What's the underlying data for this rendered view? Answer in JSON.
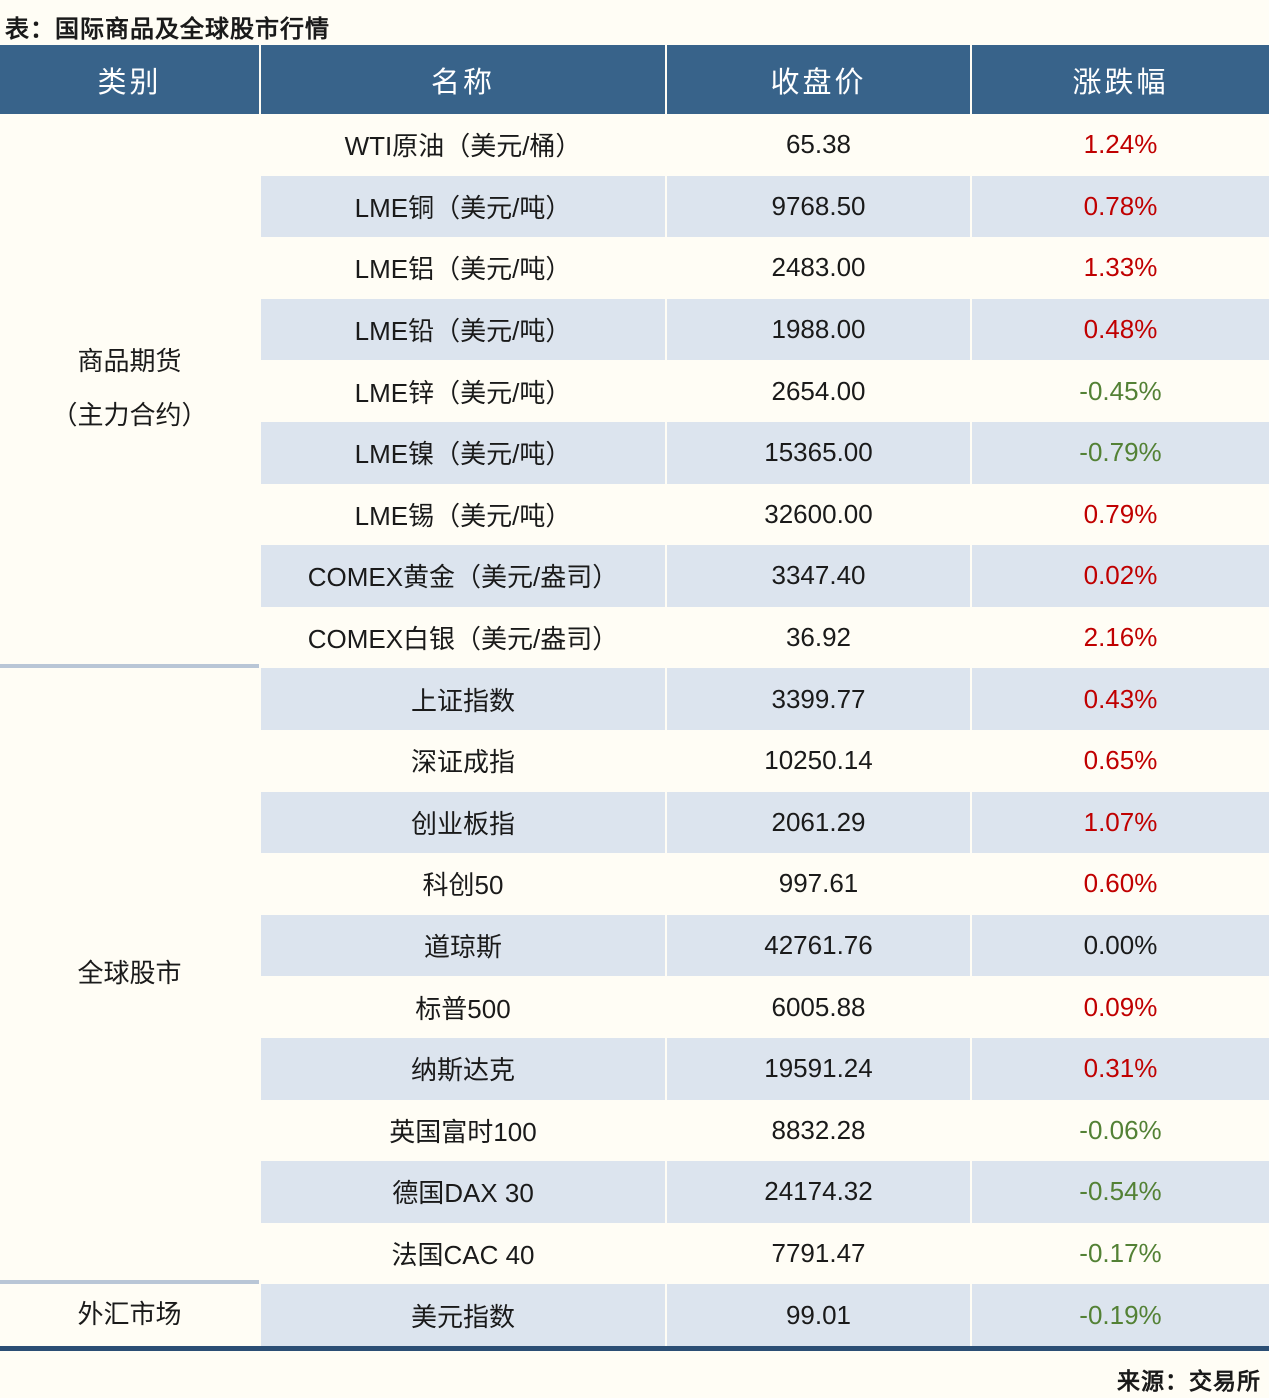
{
  "page": {
    "title": "表：国际商品及全球股市行情",
    "source": "来源：交易所"
  },
  "colors": {
    "header_bg": "#38638a",
    "row_alt_bg": "#dce4ee",
    "page_bg": "#fffdf5",
    "up_red": "#c00000",
    "down_green": "#538135",
    "flat_black": "#1a1a1a",
    "bottom_border": "#2b4e74",
    "section_divider": "#b9c6d6"
  },
  "table": {
    "headers": [
      "类别",
      "名称",
      "收盘价",
      "涨跌幅"
    ],
    "sections": [
      {
        "category_lines": [
          "商品期货",
          "（主力合约）"
        ],
        "rows": [
          {
            "name": "WTI原油（美元/桶）",
            "close": "65.38",
            "change": "1.24%"
          },
          {
            "name": "LME铜（美元/吨）",
            "close": "9768.50",
            "change": "0.78%"
          },
          {
            "name": "LME铝（美元/吨）",
            "close": "2483.00",
            "change": "1.33%"
          },
          {
            "name": "LME铅（美元/吨）",
            "close": "1988.00",
            "change": "0.48%"
          },
          {
            "name": "LME锌（美元/吨）",
            "close": "2654.00",
            "change": "-0.45%"
          },
          {
            "name": "LME镍（美元/吨）",
            "close": "15365.00",
            "change": "-0.79%"
          },
          {
            "name": "LME锡（美元/吨）",
            "close": "32600.00",
            "change": "0.79%"
          },
          {
            "name": "COMEX黄金（美元/盎司）",
            "close": "3347.40",
            "change": "0.02%"
          },
          {
            "name": "COMEX白银（美元/盎司）",
            "close": "36.92",
            "change": "2.16%"
          }
        ]
      },
      {
        "category_lines": [
          "全球股市"
        ],
        "rows": [
          {
            "name": "上证指数",
            "close": "3399.77",
            "change": "0.43%"
          },
          {
            "name": "深证成指",
            "close": "10250.14",
            "change": "0.65%"
          },
          {
            "name": "创业板指",
            "close": "2061.29",
            "change": "1.07%"
          },
          {
            "name": "科创50",
            "close": "997.61",
            "change": "0.60%"
          },
          {
            "name": "道琼斯",
            "close": "42761.76",
            "change": "0.00%"
          },
          {
            "name": "标普500",
            "close": "6005.88",
            "change": "0.09%"
          },
          {
            "name": "纳斯达克",
            "close": "19591.24",
            "change": "0.31%"
          },
          {
            "name": "英国富时100",
            "close": "8832.28",
            "change": "-0.06%"
          },
          {
            "name": "德国DAX 30",
            "close": "24174.32",
            "change": "-0.54%"
          },
          {
            "name": "法国CAC 40",
            "close": "7791.47",
            "change": "-0.17%"
          }
        ]
      },
      {
        "category_lines": [
          "外汇市场"
        ],
        "rows": [
          {
            "name": "美元指数",
            "close": "99.01",
            "change": "-0.19%"
          }
        ]
      }
    ]
  }
}
